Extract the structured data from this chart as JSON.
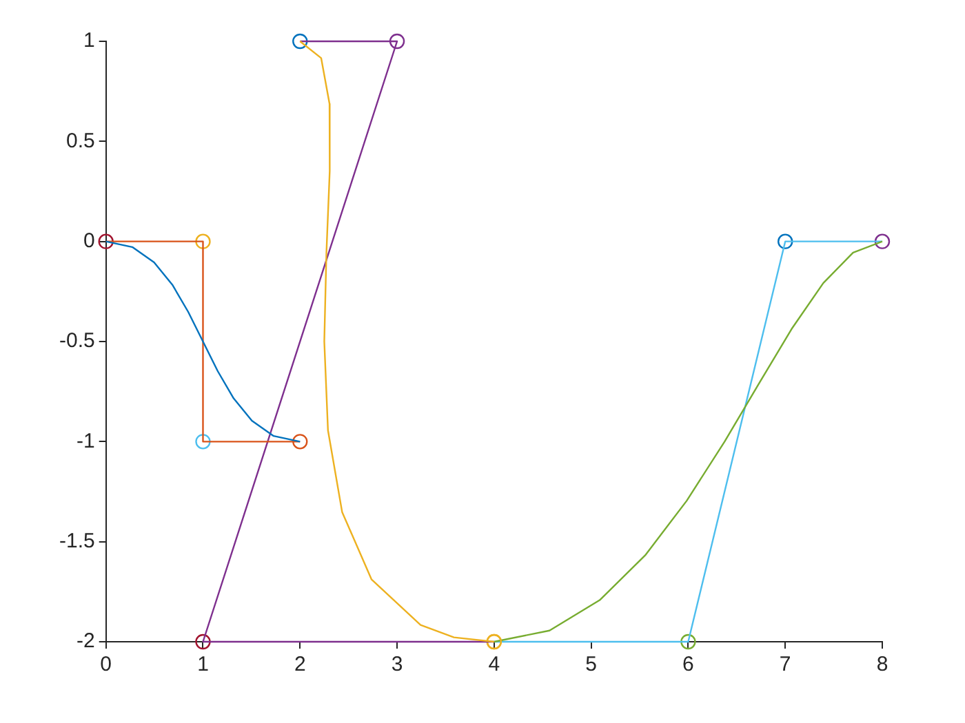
{
  "chart_data": {
    "type": "line",
    "xlim": [
      0,
      8
    ],
    "xticks": [
      0,
      1,
      2,
      3,
      4,
      5,
      6,
      7,
      8
    ],
    "ylim": [
      -2,
      1
    ],
    "yticks": [
      -2,
      -1.5,
      -1,
      -0.5,
      0,
      0.5,
      1
    ],
    "grid": false,
    "legend": false,
    "line_style": "solid",
    "series": [
      {
        "color": "#0072bd",
        "marker": "none",
        "x": [
          0,
          0.272,
          0.496,
          0.684,
          0.848,
          1,
          1.152,
          1.316,
          1.504,
          1.728,
          2
        ],
        "values": [
          0,
          -0.028,
          -0.104,
          -0.216,
          -0.352,
          -0.5,
          -0.648,
          -0.784,
          -0.896,
          -0.972,
          -1
        ]
      },
      {
        "color": "#d95319",
        "marker": "none",
        "x": [
          0,
          1,
          1,
          2
        ],
        "values": [
          0,
          0,
          -1,
          -1
        ]
      },
      {
        "type": "scatter",
        "marker": "circle",
        "colors": [
          "#a2142f",
          "#edb120",
          "#4dbeee",
          "#d95319"
        ],
        "x": [
          0,
          1,
          1,
          2
        ],
        "values": [
          0,
          0,
          -1,
          -1
        ]
      },
      {
        "color": "#edb120",
        "marker": "none",
        "x": [
          2,
          2.218,
          2.304,
          2.306,
          2.272,
          2.25,
          2.288,
          2.434,
          2.736,
          3.242,
          3.586,
          4
        ],
        "values": [
          1,
          0.916,
          0.688,
          0.352,
          -0.056,
          -0.5,
          -0.944,
          -1.352,
          -1.688,
          -1.916,
          -1.978,
          -2
        ]
      },
      {
        "color": "#7e2f8e",
        "marker": "none",
        "x": [
          2,
          3,
          1,
          4
        ],
        "values": [
          1,
          1,
          -2,
          -2
        ]
      },
      {
        "type": "scatter",
        "marker": "circle",
        "colors": [
          "#0072bd",
          "#7e2f8e",
          "#a2142f",
          "#edb120"
        ],
        "x": [
          2,
          3,
          1,
          4
        ],
        "values": [
          1,
          1,
          -2,
          -2
        ]
      },
      {
        "color": "#77ac30",
        "marker": "none",
        "x": [
          4,
          4.571,
          5.088,
          5.557,
          5.984,
          6.375,
          6.736,
          7.073,
          7.392,
          7.699,
          8
        ],
        "values": [
          -2,
          -1.944,
          -1.792,
          -1.568,
          -1.296,
          -1,
          -0.704,
          -0.432,
          -0.208,
          -0.056,
          0
        ]
      },
      {
        "color": "#4dbeee",
        "marker": "none",
        "x": [
          4,
          6,
          7,
          8
        ],
        "values": [
          -2,
          -2,
          0,
          0
        ]
      },
      {
        "type": "scatter",
        "marker": "circle",
        "colors": [
          "#edb120",
          "#77ac30",
          "#0072bd",
          "#7e2f8e"
        ],
        "x": [
          4,
          6,
          7,
          8
        ],
        "values": [
          -2,
          -2,
          0,
          0
        ]
      }
    ]
  }
}
